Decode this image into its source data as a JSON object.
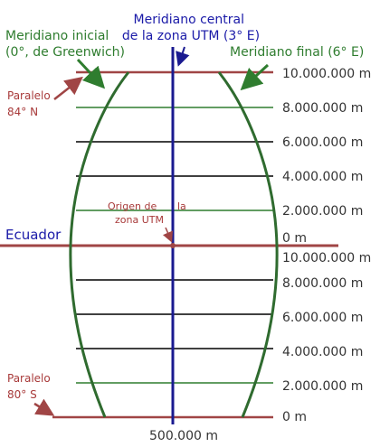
{
  "labels": {
    "central_meridian": [
      "Meridiano central",
      "de la zona UTM (3° E)"
    ],
    "initial_meridian": [
      "Meridiano inicial",
      "(0°, de Greenwich)"
    ],
    "final_meridian": "Meridiano final (6° E)",
    "parallel_north": [
      "Paralelo",
      "84° N"
    ],
    "parallel_south": [
      "Paralelo",
      "80° S"
    ],
    "equator": "Ecuador",
    "origin": [
      "Origen de",
      "la",
      "zona UTM"
    ],
    "false_easting": "500.000 m"
  },
  "northing_north": [
    "10.000.000 m",
    "8.000.000 m",
    "6.000.000 m",
    "4.000.000 m",
    "2.000.000 m",
    "0 m"
  ],
  "northing_south": [
    "10.000.000 m",
    "8.000.000 m",
    "6.000.000 m",
    "4.000.000 m",
    "2.000.000 m",
    "0 m"
  ],
  "colors": {
    "blue_label": "#1a1aa8",
    "green_label": "#2f7d2f",
    "red_label": "#a83a3a",
    "central_line": "#1a1a90",
    "meridian_curve": "#2f6b2f",
    "grid_black": "#000000",
    "grid_green": "#2f7d2f",
    "limit_red": "#a04545",
    "text_dark": "#333333"
  }
}
